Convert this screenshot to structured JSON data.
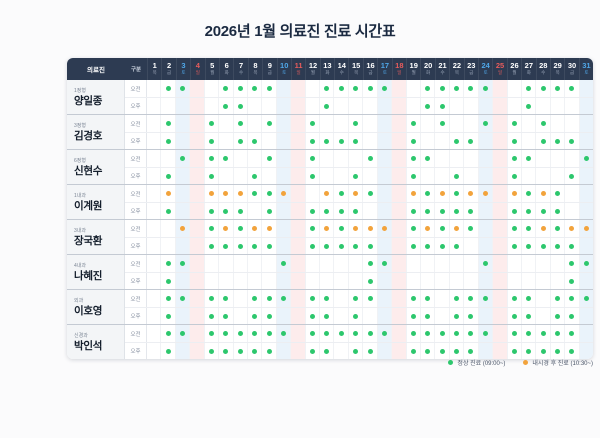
{
  "title": "2026년 1월 의료진 진료 시간표",
  "colors": {
    "green": "#2dc76d",
    "orange": "#f2a33c",
    "header_bg": "#2d3b52",
    "sat_text": "#4fa7e8",
    "sun_text": "#e85c5c",
    "sat_col_bg": "#eaf3fb",
    "sun_col_bg": "#fdecec"
  },
  "table": {
    "staff_header": "의료진",
    "category_header": "구분",
    "morning_label": "오전",
    "afternoon_label": "오후",
    "days": [
      {
        "date": 1,
        "dow": "목",
        "type": "weekday"
      },
      {
        "date": 2,
        "dow": "금",
        "type": "weekday"
      },
      {
        "date": 3,
        "dow": "토",
        "type": "sat"
      },
      {
        "date": 4,
        "dow": "일",
        "type": "sun"
      },
      {
        "date": 5,
        "dow": "월",
        "type": "weekday"
      },
      {
        "date": 6,
        "dow": "화",
        "type": "weekday"
      },
      {
        "date": 7,
        "dow": "수",
        "type": "weekday"
      },
      {
        "date": 8,
        "dow": "목",
        "type": "weekday"
      },
      {
        "date": 9,
        "dow": "금",
        "type": "weekday"
      },
      {
        "date": 10,
        "dow": "토",
        "type": "sat"
      },
      {
        "date": 11,
        "dow": "일",
        "type": "sun"
      },
      {
        "date": 12,
        "dow": "월",
        "type": "weekday"
      },
      {
        "date": 13,
        "dow": "화",
        "type": "weekday"
      },
      {
        "date": 14,
        "dow": "수",
        "type": "weekday"
      },
      {
        "date": 15,
        "dow": "목",
        "type": "weekday"
      },
      {
        "date": 16,
        "dow": "금",
        "type": "weekday"
      },
      {
        "date": 17,
        "dow": "토",
        "type": "sat"
      },
      {
        "date": 18,
        "dow": "일",
        "type": "sun"
      },
      {
        "date": 19,
        "dow": "월",
        "type": "weekday"
      },
      {
        "date": 20,
        "dow": "화",
        "type": "weekday"
      },
      {
        "date": 21,
        "dow": "수",
        "type": "weekday"
      },
      {
        "date": 22,
        "dow": "목",
        "type": "weekday"
      },
      {
        "date": 23,
        "dow": "금",
        "type": "weekday"
      },
      {
        "date": 24,
        "dow": "토",
        "type": "sat"
      },
      {
        "date": 25,
        "dow": "일",
        "type": "sun"
      },
      {
        "date": 26,
        "dow": "월",
        "type": "weekday"
      },
      {
        "date": 27,
        "dow": "화",
        "type": "weekday"
      },
      {
        "date": 28,
        "dow": "수",
        "type": "weekday"
      },
      {
        "date": 29,
        "dow": "목",
        "type": "weekday"
      },
      {
        "date": 30,
        "dow": "금",
        "type": "weekday"
      },
      {
        "date": 31,
        "dow": "토",
        "type": "sat"
      }
    ],
    "doctors": [
      {
        "dept": "1정형",
        "name": "양일종",
        "am": {
          "green": [
            2,
            3,
            6,
            7,
            8,
            9,
            13,
            14,
            15,
            16,
            17,
            20,
            21,
            22,
            23,
            24,
            27,
            28,
            29,
            30
          ],
          "orange": []
        },
        "pm": {
          "green": [
            6,
            7,
            13,
            20,
            21,
            27
          ],
          "orange": []
        }
      },
      {
        "dept": "3정형",
        "name": "김경호",
        "am": {
          "green": [
            2,
            5,
            7,
            9,
            12,
            15,
            19,
            21,
            24,
            26,
            28
          ],
          "orange": []
        },
        "pm": {
          "green": [
            2,
            5,
            7,
            8,
            12,
            13,
            14,
            15,
            19,
            22,
            23,
            26,
            28,
            29,
            30
          ],
          "orange": []
        }
      },
      {
        "dept": "6정형",
        "name": "신현수",
        "am": {
          "green": [
            3,
            5,
            6,
            9,
            12,
            16,
            19,
            20,
            26,
            27,
            31
          ],
          "orange": []
        },
        "pm": {
          "green": [
            2,
            5,
            8,
            12,
            15,
            19,
            22,
            26,
            30
          ],
          "orange": []
        }
      },
      {
        "dept": "1내과",
        "name": "이계원",
        "am": {
          "green": [
            8,
            9,
            14,
            16,
            20,
            22,
            27,
            29
          ],
          "orange": [
            2,
            5,
            6,
            7,
            10,
            13,
            15,
            19,
            21,
            23,
            24,
            26,
            28
          ]
        },
        "pm": {
          "green": [
            2,
            5,
            6,
            7,
            9,
            12,
            13,
            14,
            15,
            19,
            20,
            21,
            22,
            23,
            26,
            27,
            28,
            29
          ],
          "orange": []
        }
      },
      {
        "dept": "3내과",
        "name": "장국환",
        "am": {
          "green": [
            5,
            7,
            12,
            14,
            19,
            21,
            23,
            26,
            27,
            29
          ],
          "orange": [
            3,
            6,
            8,
            9,
            13,
            15,
            16,
            17,
            20,
            22,
            28,
            30,
            31
          ]
        },
        "pm": {
          "green": [
            5,
            6,
            7,
            8,
            9,
            12,
            13,
            14,
            15,
            16,
            19,
            20,
            21,
            22,
            26,
            27,
            28,
            29,
            30
          ],
          "orange": []
        }
      },
      {
        "dept": "4내과",
        "name": "나혜진",
        "am": {
          "green": [
            2,
            3,
            10,
            16,
            17,
            24,
            30,
            31
          ],
          "orange": []
        },
        "pm": {
          "green": [
            2,
            16,
            30
          ],
          "orange": []
        }
      },
      {
        "dept": "외과",
        "name": "이호영",
        "am": {
          "green": [
            2,
            3,
            5,
            6,
            8,
            9,
            10,
            12,
            13,
            15,
            16,
            19,
            20,
            22,
            23,
            24,
            26,
            27,
            29,
            30,
            31
          ],
          "orange": []
        },
        "pm": {
          "green": [
            2,
            5,
            6,
            8,
            9,
            12,
            13,
            15,
            19,
            20,
            22,
            23,
            26,
            27,
            29,
            30
          ],
          "orange": []
        }
      },
      {
        "dept": "신경과",
        "name": "박인석",
        "am": {
          "green": [
            2,
            3,
            5,
            6,
            7,
            8,
            9,
            10,
            12,
            13,
            14,
            15,
            16,
            17,
            19,
            20,
            21,
            22,
            23,
            24,
            26,
            27,
            28,
            29,
            30
          ],
          "orange": []
        },
        "pm": {
          "green": [
            2,
            5,
            6,
            7,
            8,
            9,
            12,
            13,
            15,
            16,
            19,
            20,
            21,
            22,
            23,
            26,
            27,
            28,
            29,
            30
          ],
          "orange": []
        }
      }
    ]
  },
  "legend": [
    {
      "color_key": "green",
      "label": "정상 진료 (09:00~)"
    },
    {
      "color_key": "orange",
      "label": "내시경 후 진료 (10:30~)"
    }
  ]
}
